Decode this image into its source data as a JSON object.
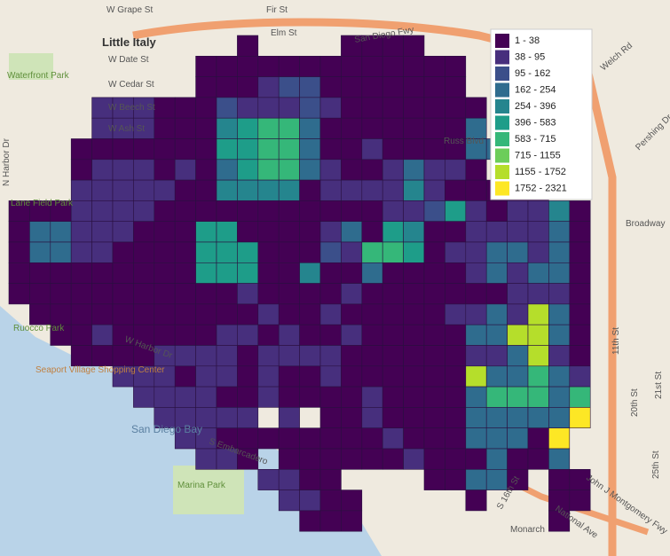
{
  "legend": {
    "items": [
      {
        "label": "1 - 38",
        "color": "#440154"
      },
      {
        "label": "38 - 95",
        "color": "#472f7d"
      },
      {
        "label": "95 - 162",
        "color": "#3b4f8a"
      },
      {
        "label": "162 - 254",
        "color": "#2f6c8e"
      },
      {
        "label": "254 - 396",
        "color": "#25858e"
      },
      {
        "label": "396 - 583",
        "color": "#1e9d89"
      },
      {
        "label": "583 - 715",
        "color": "#35b779"
      },
      {
        "label": "715 - 1155",
        "color": "#6ccd5a"
      },
      {
        "label": "1155 - 1752",
        "color": "#b5de2b"
      },
      {
        "label": "1752 - 2321",
        "color": "#fde725"
      }
    ]
  },
  "map_labels": {
    "little_italy": "Little Italy",
    "grape": "W Grape St",
    "fir": "Fir St",
    "elm": "Elm St",
    "fwy": "San Diego Fwy",
    "date": "W Date St",
    "cedar": "W Cedar St",
    "beech": "W Beech St",
    "ash": "W Ash St",
    "waterfront": "Waterfront Park",
    "lanefield": "Lane Field Park",
    "ruocco": "Ruocco Park",
    "seaport": "Seaport Village Shopping Center",
    "bay": "San Diego Bay",
    "marina": "Marina Park",
    "harbor": "W Harbor Dr",
    "nharbor": "N Harbor Dr",
    "broadway": "Broadway",
    "pershing": "Pershing Dr",
    "welch": "Welch Rd",
    "russ": "Russ Blvd",
    "eleventh": "11th St",
    "twentieth": "20th St",
    "twentyfirst": "21st St",
    "twentyfifth": "25th St",
    "national": "National Ave",
    "montgomery": "John J Montgomery Fwy",
    "monarch": "Monarch",
    "embarcadero": "S Embarcadero",
    "sixteenth": "S 16th St"
  }
}
